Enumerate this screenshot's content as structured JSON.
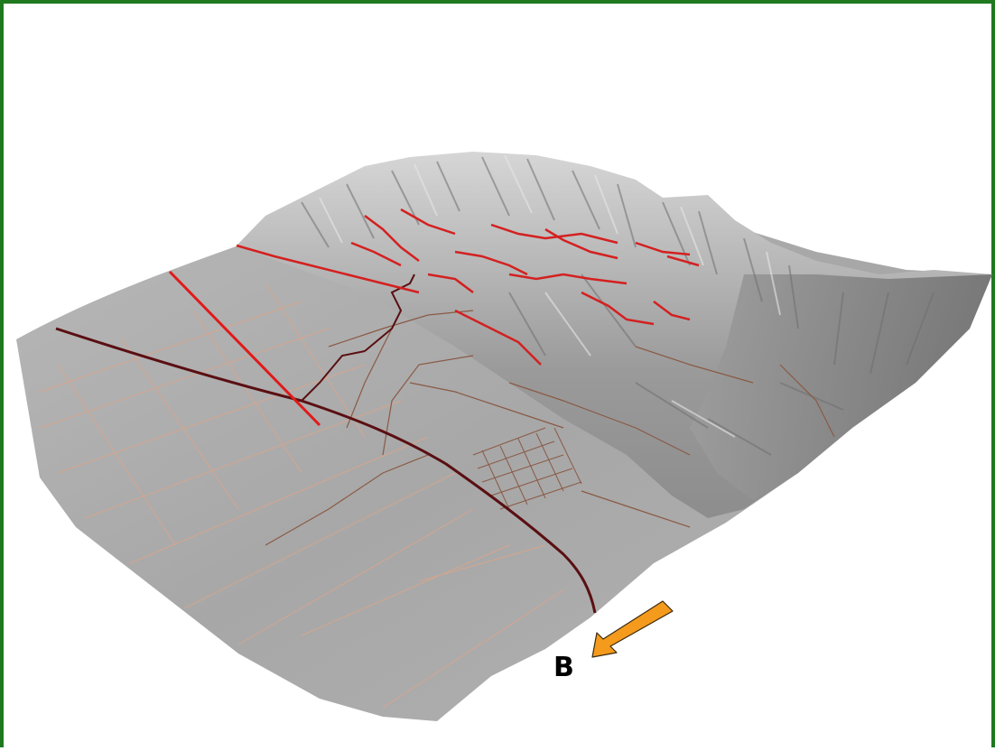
{
  "figure": {
    "label": "B",
    "frame_color": "#1f7a1f",
    "terrain_color": "#a9a9a9",
    "ridge_color": "#d42020",
    "highway_color": "#5a0f12",
    "road_color": "#8a5a45",
    "minor_road_color": "#d9a58c",
    "arrow_color": "#f49a1c",
    "arrow_icon": "arrow-down-left-icon"
  }
}
